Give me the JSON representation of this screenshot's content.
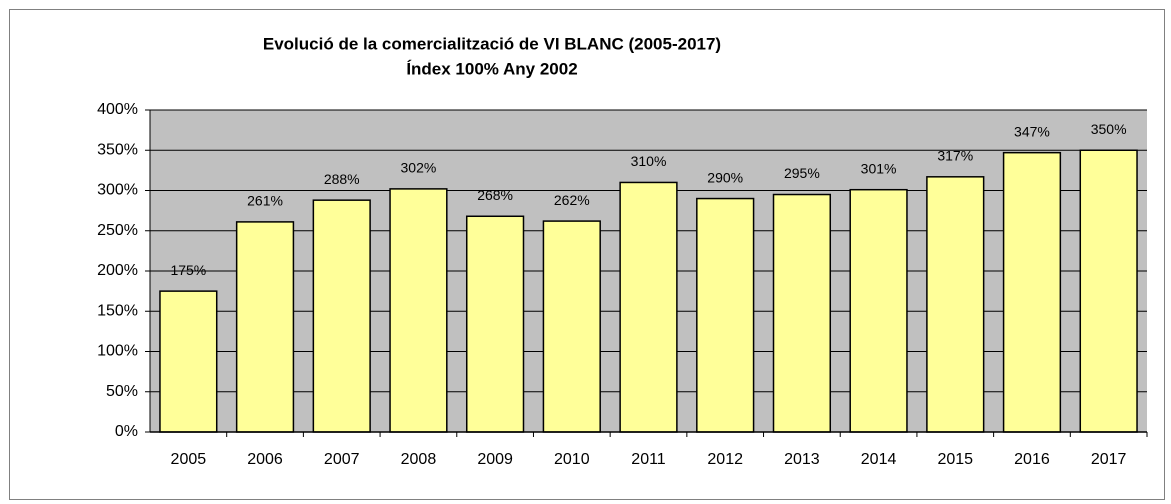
{
  "chart_data": {
    "type": "bar",
    "title": "Evolució de la comercialització de VI BLANC (2005-2017)",
    "subtitle": "Índex 100% Any 2002",
    "categories": [
      "2005",
      "2006",
      "2007",
      "2008",
      "2009",
      "2010",
      "2011",
      "2012",
      "2013",
      "2014",
      "2015",
      "2016",
      "2017"
    ],
    "values": [
      175,
      261,
      288,
      302,
      268,
      262,
      310,
      290,
      295,
      301,
      317,
      347,
      350
    ],
    "value_labels": [
      "175%",
      "261%",
      "288%",
      "302%",
      "268%",
      "262%",
      "310%",
      "290%",
      "295%",
      "301%",
      "317%",
      "347%",
      "350%"
    ],
    "color": "#ffff99",
    "ylim": [
      0,
      400
    ],
    "yticks": [
      {
        "value": 0,
        "label": "0%"
      },
      {
        "value": 50,
        "label": "50%"
      },
      {
        "value": 100,
        "label": "100%"
      },
      {
        "value": 150,
        "label": "150%"
      },
      {
        "value": 200,
        "label": "200%"
      },
      {
        "value": 250,
        "label": "250%"
      },
      {
        "value": 300,
        "label": "300%"
      },
      {
        "value": 350,
        "label": "350%"
      },
      {
        "value": 400,
        "label": "400%"
      }
    ],
    "grid": true
  }
}
